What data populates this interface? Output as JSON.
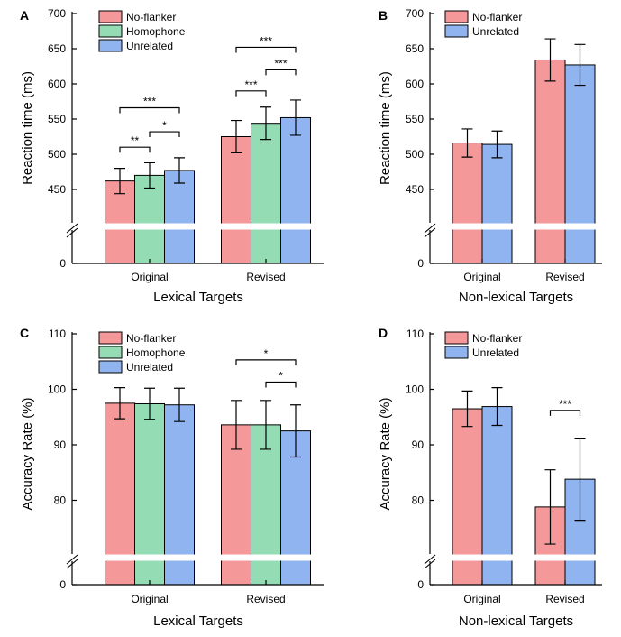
{
  "chart_data": [
    {
      "panel": "A",
      "type": "bar",
      "title": "Lexical Targets",
      "ylabel": "Reaction time (ms)",
      "ylim": [
        0,
        700
      ],
      "ybreak": [
        0,
        400
      ],
      "yticks": [
        0,
        450,
        500,
        550,
        600,
        650,
        700
      ],
      "categories": [
        "Original",
        "Revised"
      ],
      "series": [
        {
          "name": "No-flanker",
          "color": "#f4989a",
          "values": [
            462,
            525
          ],
          "errors": [
            18,
            23
          ]
        },
        {
          "name": "Homophone",
          "color": "#94dcb3",
          "values": [
            470,
            544
          ],
          "errors": [
            18,
            23
          ]
        },
        {
          "name": "Unrelated",
          "color": "#90b4ef",
          "values": [
            477,
            552
          ],
          "errors": [
            18,
            25
          ]
        }
      ],
      "significance": [
        {
          "category": 0,
          "from": 0,
          "to": 1,
          "label": "**",
          "y": 510
        },
        {
          "category": 0,
          "from": 1,
          "to": 2,
          "label": "*",
          "y": 532
        },
        {
          "category": 0,
          "from": 0,
          "to": 2,
          "label": "***",
          "y": 566
        },
        {
          "category": 1,
          "from": 0,
          "to": 1,
          "label": "***",
          "y": 590
        },
        {
          "category": 1,
          "from": 1,
          "to": 2,
          "label": "***",
          "y": 620
        },
        {
          "category": 1,
          "from": 0,
          "to": 2,
          "label": "***",
          "y": 652
        }
      ],
      "legend": "top-left"
    },
    {
      "panel": "B",
      "type": "bar",
      "title": "Non-lexical Targets",
      "ylabel": "Reaction time (ms)",
      "ylim": [
        0,
        700
      ],
      "ybreak": [
        0,
        400
      ],
      "yticks": [
        0,
        450,
        500,
        550,
        600,
        650,
        700
      ],
      "categories": [
        "Original",
        "Revised"
      ],
      "series": [
        {
          "name": "No-flanker",
          "color": "#f4989a",
          "values": [
            516,
            634
          ],
          "errors": [
            20,
            30
          ]
        },
        {
          "name": "Unrelated",
          "color": "#90b4ef",
          "values": [
            514,
            627
          ],
          "errors": [
            19,
            29
          ]
        }
      ],
      "significance": [],
      "legend": "top-left"
    },
    {
      "panel": "C",
      "type": "bar",
      "title": "Lexical Targets",
      "ylabel": "Accuracy Rate (%)",
      "ylim": [
        0,
        110
      ],
      "ybreak": [
        0,
        70
      ],
      "yticks": [
        0,
        80,
        90,
        100,
        110
      ],
      "categories": [
        "Original",
        "Revised"
      ],
      "series": [
        {
          "name": "No-flanker",
          "color": "#f4989a",
          "values": [
            97.5,
            93.6
          ],
          "errors": [
            2.8,
            4.4
          ]
        },
        {
          "name": "Homophone",
          "color": "#94dcb3",
          "values": [
            97.4,
            93.6
          ],
          "errors": [
            2.8,
            4.4
          ]
        },
        {
          "name": "Unrelated",
          "color": "#90b4ef",
          "values": [
            97.2,
            92.5
          ],
          "errors": [
            3.0,
            4.7
          ]
        }
      ],
      "significance": [
        {
          "category": 1,
          "from": 1,
          "to": 2,
          "label": "*",
          "y": 101.3
        },
        {
          "category": 1,
          "from": 0,
          "to": 2,
          "label": "*",
          "y": 105.3
        }
      ],
      "legend": "top-left"
    },
    {
      "panel": "D",
      "type": "bar",
      "title": "Non-lexical Targets",
      "ylabel": "Accuracy Rate (%)",
      "ylim": [
        0,
        110
      ],
      "ybreak": [
        0,
        70
      ],
      "yticks": [
        0,
        80,
        90,
        100,
        110
      ],
      "categories": [
        "Original",
        "Revised"
      ],
      "series": [
        {
          "name": "No-flanker",
          "color": "#f4989a",
          "values": [
            96.5,
            78.8
          ],
          "errors": [
            3.2,
            6.7
          ]
        },
        {
          "name": "Unrelated",
          "color": "#90b4ef",
          "values": [
            96.9,
            83.8
          ],
          "errors": [
            3.4,
            7.4
          ]
        }
      ],
      "significance": [
        {
          "category": 1,
          "from": 0,
          "to": 1,
          "label": "***",
          "y": 96.2
        }
      ],
      "legend": "top-left"
    }
  ]
}
